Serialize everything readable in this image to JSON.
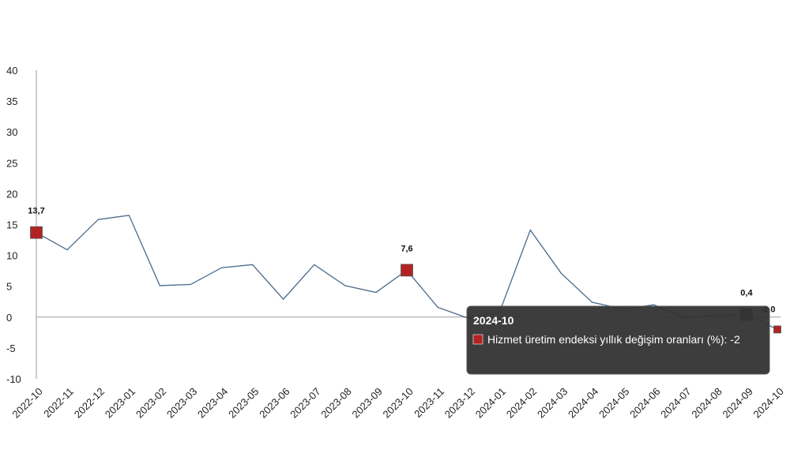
{
  "chart_data": {
    "type": "line",
    "categories": [
      "2022-10",
      "2022-11",
      "2022-12",
      "2023-01",
      "2023-02",
      "2023-03",
      "2023-04",
      "2023-05",
      "2023-06",
      "2023-07",
      "2023-08",
      "2023-09",
      "2023-10",
      "2023-11",
      "2023-12",
      "2024-01",
      "2024-02",
      "2024-03",
      "2024-04",
      "2024-05",
      "2024-06",
      "2024-07",
      "2024-08",
      "2024-09",
      "2024-10"
    ],
    "series": [
      {
        "name": "Hizmet üretim endeksi yıllık değişim oranları (%)",
        "values": [
          13.7,
          10.9,
          15.8,
          16.5,
          5.1,
          5.3,
          8.0,
          8.5,
          2.9,
          8.5,
          5.1,
          4.0,
          7.6,
          1.6,
          -0.2,
          0.8,
          14.1,
          7.1,
          2.4,
          1.3,
          2.0,
          -0.1,
          0.3,
          0.4,
          -2.0
        ],
        "color": "#4a6a8a"
      }
    ],
    "ylim": [
      -10,
      40
    ],
    "yticks": [
      -10,
      -5,
      0,
      5,
      10,
      15,
      20,
      25,
      30,
      35,
      40
    ],
    "grid": false,
    "highlighted_points": [
      {
        "index": 0,
        "label": "13,7",
        "color": "#b22222"
      },
      {
        "index": 12,
        "label": "7,6",
        "color": "#b22222"
      },
      {
        "index": 23,
        "label": "0,4",
        "color": "#1f3a5a"
      },
      {
        "index": 24,
        "label": "-2,0",
        "color": "#b22222"
      }
    ],
    "tooltip": {
      "title": "2024-10",
      "text": "Hizmet üretim endeksi yıllık değişim oranları (%): -2",
      "swatch_color": "#b22222"
    }
  }
}
